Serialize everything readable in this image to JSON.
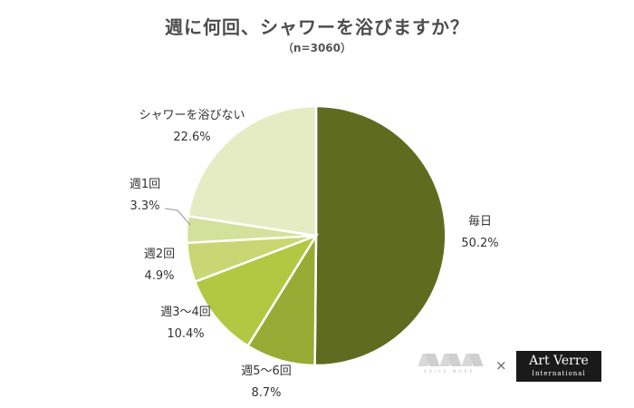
{
  "header": {
    "title": "週に何回、シャワーを浴びますか？",
    "subtitle": "（n=3060）"
  },
  "chart_data": {
    "type": "pie",
    "title": "週に何回、シャワーを浴びますか？",
    "subtitle": "（n=3060）",
    "slices": [
      {
        "label": "毎日",
        "value": 50.2,
        "display": "50.2%",
        "color": "#5f6b1f"
      },
      {
        "label": "週5～6回",
        "value": 8.7,
        "display": "8.7%",
        "color": "#98ab35"
      },
      {
        "label": "週3～4回",
        "value": 10.4,
        "display": "10.4%",
        "color": "#b3c842"
      },
      {
        "label": "週2回",
        "value": 4.9,
        "display": "4.9%",
        "color": "#c8d774"
      },
      {
        "label": "週1回",
        "value": 3.3,
        "display": "3.3%",
        "color": "#d4e19a"
      },
      {
        "label": "シャワーを浴びない",
        "value": 22.6,
        "display": "22.6%",
        "color": "#e5ecc4"
      }
    ]
  },
  "logos": {
    "left_name": "W W W",
    "left_small": "VOICE WORK",
    "separator": "×",
    "right_main": "Art Verre",
    "right_sub": "International"
  }
}
